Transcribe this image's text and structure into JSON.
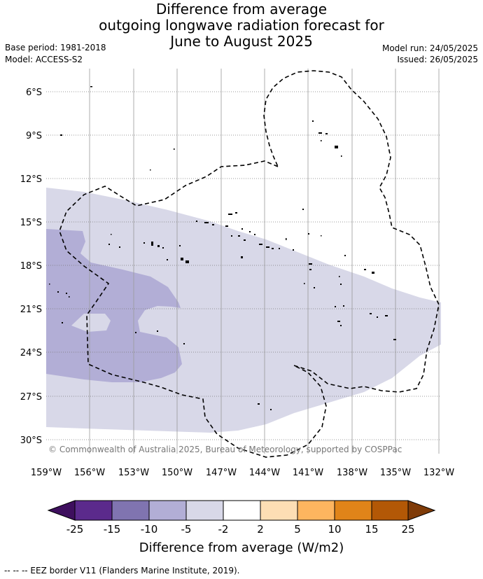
{
  "title": {
    "line1": "Difference from average",
    "line2": "outgoing longwave radiation forecast for",
    "line3": "June to August 2025"
  },
  "meta": {
    "base_period": "Base period: 1981-2018",
    "model": "Model: ACCESS-S2",
    "model_run": "Model run: 24/05/2025",
    "issued": "Issued: 26/05/2025"
  },
  "map": {
    "lat_labels": [
      "6°S",
      "9°S",
      "12°S",
      "15°S",
      "18°S",
      "21°S",
      "24°S",
      "27°S",
      "30°S"
    ],
    "lon_labels": [
      "159°W",
      "156°W",
      "153°W",
      "150°W",
      "147°W",
      "144°W",
      "141°W",
      "138°W",
      "135°W",
      "132°W"
    ],
    "copyright": "© Commonwealth of Australia 2025, Bureau of Meteorology, supported by COSPPac",
    "colors": {
      "anomaly_-5_-2": "#d8d8e8",
      "anomaly_-10_-5": "#b2aed6",
      "eez_border": "#000000"
    }
  },
  "colorbar": {
    "ticks": [
      "-25",
      "-15",
      "-10",
      "-5",
      "-2",
      "2",
      "5",
      "10",
      "15",
      "25"
    ],
    "colors": [
      "#3e0f5e",
      "#5b2a8c",
      "#8074b0",
      "#b2aed6",
      "#d8d8e8",
      "#ffffff",
      "#fddeb4",
      "#fdb55f",
      "#e08419",
      "#b35806",
      "#7f3b08"
    ],
    "title": "Difference from average (W/m2)"
  },
  "footer": {
    "legend": "-- -- -- EEZ border V11 (Flanders Marine Institute, 2019)."
  }
}
